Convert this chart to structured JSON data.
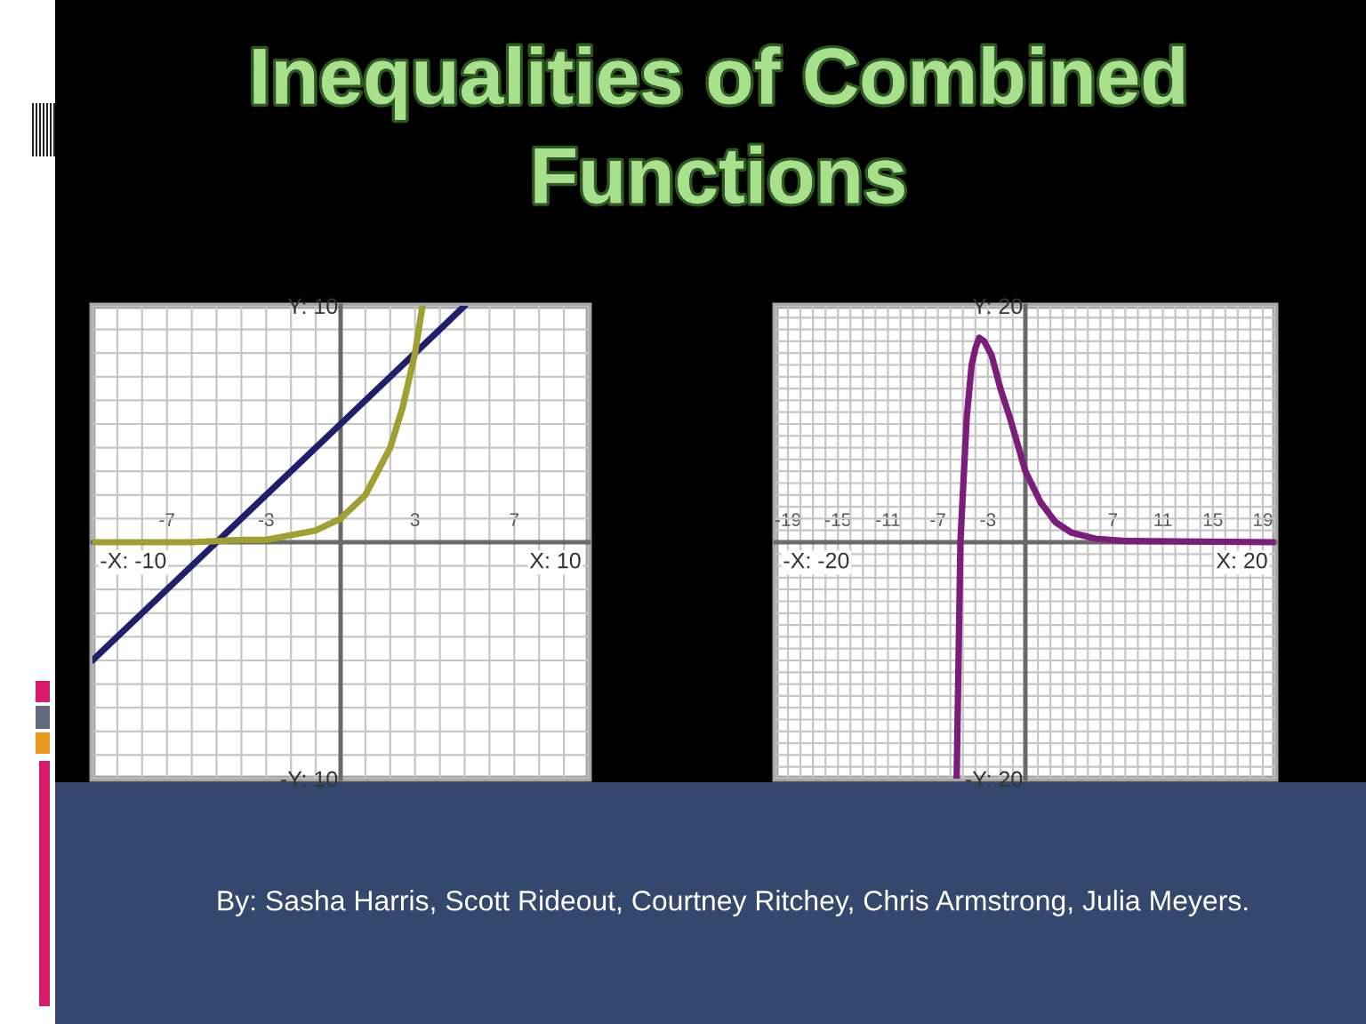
{
  "chart_data": [
    {
      "type": "line",
      "title": "Inequalities of Combined Functions",
      "annotations": [
        "-X: -10",
        "X: 10",
        "By: Sasha Harris, Scott Rideout, Courtney Ritchey, Chris Armstrong, Julia Meyers."
      ],
      "xlim": [
        -10,
        10
      ],
      "ylim": [
        -10,
        10
      ],
      "xticks": [
        {
          "value": -10,
          "label": null
        },
        {
          "value": -9,
          "label": null
        },
        {
          "value": -8,
          "label": null
        },
        -7,
        {
          "value": -6,
          "label": null
        },
        {
          "value": -5,
          "label": null
        },
        {
          "value": -4,
          "label": null
        },
        -3,
        {
          "value": -2,
          "label": null
        },
        {
          "value": -1,
          "label": null
        },
        {
          "value": 0,
          "label": null
        },
        {
          "value": 1,
          "label": null
        },
        {
          "value": 2,
          "label": null
        },
        3,
        {
          "value": 4,
          "label": null
        },
        {
          "value": 5,
          "label": null
        },
        {
          "value": 6,
          "label": null
        },
        7,
        {
          "value": 8,
          "label": null
        },
        {
          "value": 9,
          "label": null
        },
        {
          "value": 10,
          "label": null
        }
      ],
      "yticks": [
        {
          "value": -10,
          "label": "-Y: 10"
        },
        {
          "value": -9,
          "label": null
        },
        {
          "value": -8,
          "label": null
        },
        {
          "value": -7,
          "label": null
        },
        {
          "value": -6,
          "label": null
        },
        {
          "value": -5,
          "label": null
        },
        {
          "value": -4,
          "label": null
        },
        {
          "value": -3,
          "label": null
        },
        {
          "value": -2,
          "label": null
        },
        {
          "value": -1,
          "label": null
        },
        {
          "value": 0,
          "label": null
        },
        {
          "value": 1,
          "label": null
        },
        {
          "value": 2,
          "label": null
        },
        {
          "value": 3,
          "label": null
        },
        {
          "value": 4,
          "label": null
        },
        {
          "value": 5,
          "label": null
        },
        {
          "value": 6,
          "label": null
        },
        {
          "value": 7,
          "label": null
        },
        {
          "value": 8,
          "label": null
        },
        {
          "value": 9,
          "label": null
        },
        {
          "value": 10,
          "label": "Y: 10"
        }
      ],
      "grid": true,
      "series": [
        {
          "color": "#1f1f6b",
          "x": [
            -10,
            -5,
            0,
            5
          ],
          "values": [
            -5,
            0,
            5,
            10
          ]
        },
        {
          "color": "#a0a032",
          "x": [
            -10,
            -6,
            -4,
            -3,
            -2,
            -1,
            0,
            1,
            2,
            2.5,
            3,
            3.3
          ],
          "values": [
            0,
            0,
            0.1,
            0.1,
            0.3,
            0.5,
            1,
            2,
            4,
            5.7,
            8,
            10
          ]
        }
      ]
    },
    {
      "type": "line",
      "annotations": [
        "-X: -20",
        "X: 20"
      ],
      "xlim": [
        -20,
        20
      ],
      "ylim": [
        -20,
        20
      ],
      "xticks": [
        {
          "value": -20,
          "label": null
        },
        -19,
        {
          "value": -18,
          "label": null
        },
        {
          "value": -17,
          "label": null
        },
        {
          "value": -16,
          "label": null
        },
        -15,
        {
          "value": -14,
          "label": null
        },
        {
          "value": -13,
          "label": null
        },
        {
          "value": -12,
          "label": null
        },
        -11,
        {
          "value": -10,
          "label": null
        },
        {
          "value": -9,
          "label": null
        },
        {
          "value": -8,
          "label": null
        },
        -7,
        {
          "value": -6,
          "label": null
        },
        {
          "value": -5,
          "label": null
        },
        {
          "value": -4,
          "label": null
        },
        -3,
        {
          "value": -2,
          "label": null
        },
        {
          "value": -1,
          "label": null
        },
        {
          "value": 0,
          "label": null
        },
        {
          "value": 1,
          "label": null
        },
        {
          "value": 2,
          "label": null
        },
        {
          "value": 3,
          "label": null
        },
        {
          "value": 4,
          "label": null
        },
        {
          "value": 5,
          "label": null
        },
        {
          "value": 6,
          "label": null
        },
        7,
        {
          "value": 8,
          "label": null
        },
        {
          "value": 9,
          "label": null
        },
        {
          "value": 10,
          "label": null
        },
        11,
        {
          "value": 12,
          "label": null
        },
        {
          "value": 13,
          "label": null
        },
        {
          "value": 14,
          "label": null
        },
        15,
        {
          "value": 16,
          "label": null
        },
        {
          "value": 17,
          "label": null
        },
        {
          "value": 18,
          "label": null
        },
        19,
        {
          "value": 20,
          "label": null
        }
      ],
      "yticks": [
        {
          "value": -20,
          "label": "-Y: 20"
        },
        {
          "value": -19,
          "label": null
        },
        {
          "value": -18,
          "label": null
        },
        {
          "value": -17,
          "label": null
        },
        {
          "value": -16,
          "label": null
        },
        {
          "value": -15,
          "label": null
        },
        {
          "value": -14,
          "label": null
        },
        {
          "value": -13,
          "label": null
        },
        {
          "value": -12,
          "label": null
        },
        {
          "value": -11,
          "label": null
        },
        {
          "value": -10,
          "label": null
        },
        {
          "value": -9,
          "label": null
        },
        {
          "value": -8,
          "label": null
        },
        {
          "value": -7,
          "label": null
        },
        {
          "value": -6,
          "label": null
        },
        {
          "value": -5,
          "label": null
        },
        {
          "value": -4,
          "label": null
        },
        {
          "value": -3,
          "label": null
        },
        {
          "value": -2,
          "label": null
        },
        {
          "value": -1,
          "label": null
        },
        {
          "value": 0,
          "label": null
        },
        {
          "value": 1,
          "label": null
        },
        {
          "value": 2,
          "label": null
        },
        {
          "value": 3,
          "label": null
        },
        {
          "value": 4,
          "label": null
        },
        {
          "value": 5,
          "label": null
        },
        {
          "value": 6,
          "label": null
        },
        {
          "value": 7,
          "label": null
        },
        {
          "value": 8,
          "label": null
        },
        {
          "value": 9,
          "label": null
        },
        {
          "value": 10,
          "label": null
        },
        {
          "value": 11,
          "label": null
        },
        {
          "value": 12,
          "label": null
        },
        {
          "value": 13,
          "label": null
        },
        {
          "value": 14,
          "label": null
        },
        {
          "value": 15,
          "label": null
        },
        {
          "value": 16,
          "label": null
        },
        {
          "value": 17,
          "label": null
        },
        {
          "value": 18,
          "label": null
        },
        {
          "value": 19,
          "label": null
        },
        {
          "value": 20,
          "label": "Y: 20"
        }
      ],
      "grid": true,
      "series": [
        {
          "color": "#7b1d7b",
          "x": [
            -5.5,
            -5.2,
            -4.7,
            -4.3,
            -4,
            -3.7,
            -3.3,
            -2.7,
            -2,
            -1.2,
            0,
            1.2,
            2.4,
            3.7,
            5.6,
            8,
            20
          ],
          "values": [
            -20,
            0,
            10.5,
            15,
            16.4,
            17.3,
            17,
            15.8,
            13,
            10.4,
            6,
            3.4,
            1.7,
            0.8,
            0.3,
            0.1,
            0
          ]
        }
      ]
    }
  ]
}
